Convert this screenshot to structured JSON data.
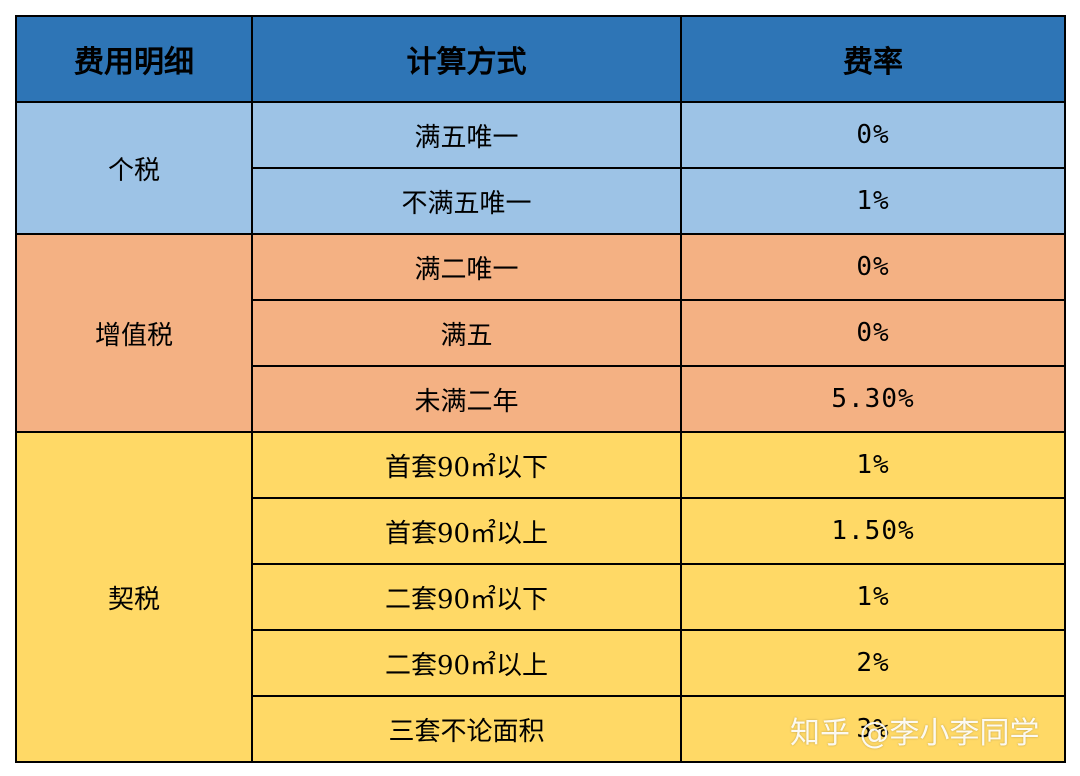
{
  "table": {
    "headers": [
      "费用明细",
      "计算方式",
      "费率"
    ],
    "groups": [
      {
        "name": "个税",
        "color": "#9dc3e6",
        "rows": [
          {
            "method": "满五唯一",
            "rate": "0%"
          },
          {
            "method": "不满五唯一",
            "rate": "1%"
          }
        ]
      },
      {
        "name": "增值税",
        "color": "#f4b183",
        "rows": [
          {
            "method": "满二唯一",
            "rate": "0%"
          },
          {
            "method": "满五",
            "rate": "0%"
          },
          {
            "method": "未满二年",
            "rate": "5.30%"
          }
        ]
      },
      {
        "name": "契税",
        "color": "#ffd966",
        "rows": [
          {
            "method": "首套90㎡以下",
            "rate": "1%"
          },
          {
            "method": "首套90㎡以上",
            "rate": "1.50%"
          },
          {
            "method": "二套90㎡以下",
            "rate": "1%"
          },
          {
            "method": "二套90㎡以上",
            "rate": "2%"
          },
          {
            "method": "三套不论面积",
            "rate": "3%"
          }
        ]
      }
    ],
    "header_color": "#2e75b6"
  },
  "watermark": "知乎 @李小李同学"
}
